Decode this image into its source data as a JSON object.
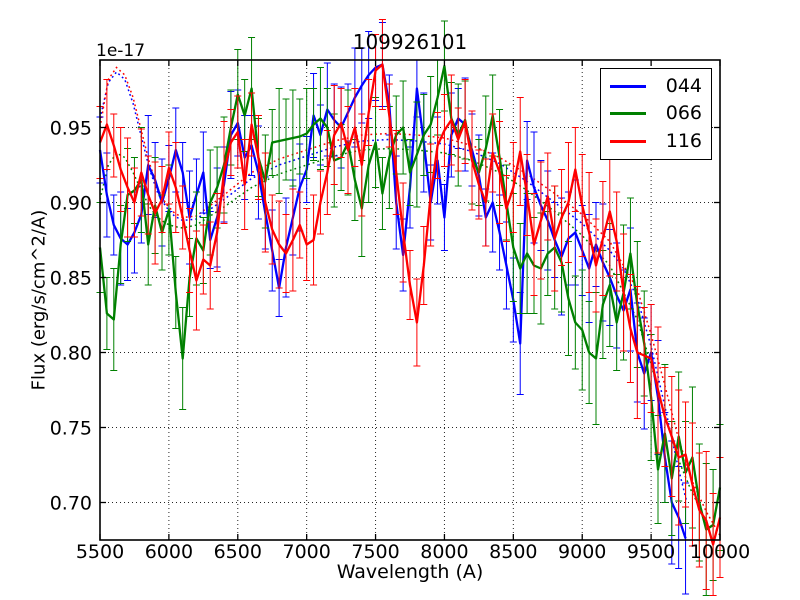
{
  "figure": {
    "title": "109926101",
    "offset_text": "1e-17",
    "xlabel": "Wavelength (A)",
    "ylabel": "Flux (erg/s/cm^2/A)"
  },
  "legend": {
    "entries": [
      {
        "label": "044",
        "color": "#0000ff"
      },
      {
        "label": "066",
        "color": "#008000"
      },
      {
        "label": "116",
        "color": "#ff0000"
      }
    ]
  },
  "chart_data": {
    "type": "line",
    "title": "109926101",
    "xlabel": "Wavelength (A)",
    "ylabel": "Flux (erg/s/cm^2/A)",
    "y_offset_factor": "1e-17",
    "grid": true,
    "legend_position": "upper right",
    "xlim": [
      5500,
      10000
    ],
    "ylim": [
      0.675,
      0.995
    ],
    "x_ticks": [
      5500,
      6000,
      6500,
      7000,
      7500,
      8000,
      8500,
      9000,
      9500,
      10000
    ],
    "x_tick_labels": [
      "5500",
      "6000",
      "6500",
      "7000",
      "7500",
      "8000",
      "8500",
      "9000",
      "9500",
      "10000"
    ],
    "y_ticks": [
      0.7,
      0.75,
      0.8,
      0.85,
      0.9,
      0.95
    ],
    "y_tick_labels": [
      "0.70",
      "0.75",
      "0.80",
      "0.85",
      "0.90",
      "0.95"
    ],
    "x_start": 5500,
    "x_step": 50,
    "series": [
      {
        "name": "044",
        "color": "#0000ff",
        "style": "solid",
        "errorbars": true,
        "values": [
          0.935,
          0.905,
          0.885,
          0.876,
          0.872,
          0.88,
          0.892,
          0.925,
          0.915,
          0.9,
          0.916,
          0.935,
          0.92,
          0.89,
          0.905,
          0.92,
          0.875,
          0.89,
          0.912,
          0.945,
          0.953,
          0.93,
          0.938,
          0.92,
          0.893,
          0.868,
          0.843,
          0.87,
          0.89,
          0.91,
          0.922,
          0.958,
          0.945,
          0.962,
          0.955,
          0.95,
          0.96,
          0.97,
          0.978,
          0.985,
          0.99,
          0.992,
          0.965,
          0.9,
          0.865,
          0.91,
          0.976,
          0.94,
          0.9,
          0.928,
          0.89,
          0.945,
          0.956,
          0.952,
          0.935,
          0.918,
          0.89,
          0.9,
          0.88,
          0.858,
          0.835,
          0.806,
          0.928,
          0.91,
          0.898,
          0.888,
          0.875,
          0.864,
          0.876,
          0.88,
          0.868,
          0.856,
          0.872,
          0.86,
          0.85,
          0.838,
          0.828,
          0.842,
          0.8,
          0.786,
          0.8,
          0.77,
          0.73,
          0.7,
          0.69,
          0.676,
          null,
          null,
          null,
          null,
          null
        ],
        "err": [
          0.022,
          0.028,
          0.02,
          0.031,
          0.024,
          0.027,
          0.019,
          0.033,
          0.025,
          0.029,
          0.022,
          0.028,
          0.02,
          0.031,
          0.024,
          0.027,
          0.019,
          0.033,
          0.025,
          0.029,
          0.022,
          0.028,
          0.02,
          0.031,
          0.024,
          0.027,
          0.019,
          0.033,
          0.025,
          0.029,
          0.022,
          0.028,
          0.02,
          0.031,
          0.024,
          0.027,
          0.019,
          0.033,
          0.025,
          0.029,
          0.022,
          0.028,
          0.02,
          0.031,
          0.024,
          0.027,
          0.019,
          0.033,
          0.025,
          0.029,
          0.022,
          0.028,
          0.02,
          0.031,
          0.024,
          0.027,
          0.019,
          0.033,
          0.025,
          0.029,
          0.028,
          0.034,
          0.026,
          0.037,
          0.03,
          0.033,
          0.025,
          0.039,
          0.031,
          0.035,
          0.03,
          0.036,
          0.028,
          0.039,
          0.032,
          0.035,
          0.027,
          0.041,
          0.033,
          0.037,
          0.032,
          0.038,
          0.03,
          0.041,
          0.034,
          0.037,
          0.029,
          0.043,
          0.035,
          0.039,
          0.032
        ]
      },
      {
        "name": "066",
        "color": "#008000",
        "style": "solid",
        "errorbars": true,
        "values": [
          0.87,
          0.826,
          0.822,
          0.872,
          0.905,
          0.908,
          0.915,
          0.872,
          0.898,
          0.88,
          0.895,
          0.84,
          0.796,
          0.85,
          0.876,
          0.868,
          0.9,
          0.91,
          0.925,
          0.95,
          0.972,
          0.958,
          0.976,
          0.93,
          0.914,
          0.94,
          0.941,
          0.942,
          0.943,
          0.944,
          0.946,
          0.952,
          0.956,
          0.95,
          0.928,
          0.93,
          0.94,
          0.915,
          0.896,
          0.925,
          0.94,
          0.906,
          0.93,
          0.945,
          0.95,
          0.92,
          0.932,
          0.945,
          0.952,
          0.97,
          0.991,
          0.956,
          0.945,
          0.955,
          0.93,
          0.92,
          0.936,
          0.958,
          0.93,
          0.9,
          0.87,
          0.856,
          0.866,
          0.858,
          0.856,
          0.866,
          0.87,
          0.86,
          0.836,
          0.82,
          0.815,
          0.8,
          0.796,
          0.832,
          0.845,
          0.82,
          0.84,
          0.866,
          0.832,
          0.806,
          0.77,
          0.722,
          0.746,
          0.716,
          0.744,
          0.72,
          0.73,
          0.7,
          0.682,
          0.685,
          0.71
        ],
        "err": [
          0.03,
          0.024,
          0.034,
          0.026,
          0.031,
          0.022,
          0.035,
          0.027,
          0.032,
          0.025,
          0.03,
          0.024,
          0.034,
          0.026,
          0.031,
          0.022,
          0.035,
          0.027,
          0.032,
          0.025,
          0.03,
          0.024,
          0.034,
          0.026,
          0.031,
          0.022,
          0.035,
          0.027,
          0.032,
          0.025,
          0.03,
          0.024,
          0.034,
          0.026,
          0.031,
          0.022,
          0.035,
          0.027,
          0.032,
          0.025,
          0.03,
          0.024,
          0.034,
          0.026,
          0.031,
          0.022,
          0.035,
          0.027,
          0.032,
          0.025,
          0.03,
          0.024,
          0.034,
          0.026,
          0.031,
          0.022,
          0.035,
          0.027,
          0.032,
          0.025,
          0.036,
          0.03,
          0.04,
          0.032,
          0.037,
          0.028,
          0.041,
          0.033,
          0.038,
          0.031,
          0.04,
          0.034,
          0.044,
          0.036,
          0.041,
          0.032,
          0.045,
          0.037,
          0.042,
          0.035,
          0.042,
          0.036,
          0.046,
          0.038,
          0.043,
          0.034,
          0.047,
          0.039,
          0.044,
          0.037,
          0.042
        ]
      },
      {
        "name": "116",
        "color": "#ff0000",
        "style": "solid",
        "errorbars": true,
        "values": [
          0.94,
          0.952,
          0.938,
          0.922,
          0.91,
          0.9,
          0.92,
          0.905,
          0.893,
          0.902,
          0.923,
          0.91,
          0.89,
          0.868,
          0.848,
          0.862,
          0.858,
          0.88,
          0.92,
          0.94,
          0.947,
          0.912,
          0.952,
          0.93,
          0.9,
          0.882,
          0.872,
          0.866,
          0.875,
          0.885,
          0.872,
          0.875,
          0.9,
          0.92,
          0.945,
          0.953,
          0.935,
          0.95,
          0.925,
          0.96,
          0.988,
          0.992,
          0.958,
          0.92,
          0.88,
          0.845,
          0.82,
          0.858,
          0.905,
          0.938,
          0.948,
          0.955,
          0.942,
          0.954,
          0.928,
          0.912,
          0.9,
          0.933,
          0.92,
          0.896,
          0.91,
          0.934,
          0.905,
          0.872,
          0.888,
          0.904,
          0.876,
          0.89,
          0.9,
          0.922,
          0.898,
          0.88,
          0.858,
          0.876,
          0.894,
          0.874,
          0.84,
          0.816,
          0.8,
          0.798,
          0.796,
          0.775,
          0.757,
          0.744,
          0.73,
          0.732,
          0.712,
          0.695,
          0.688,
          0.672,
          0.69
        ],
        "err": [
          0.024,
          0.03,
          0.021,
          0.028,
          0.033,
          0.023,
          0.029,
          0.026,
          0.034,
          0.022,
          0.024,
          0.03,
          0.021,
          0.028,
          0.033,
          0.023,
          0.029,
          0.026,
          0.034,
          0.022,
          0.024,
          0.03,
          0.021,
          0.028,
          0.033,
          0.023,
          0.029,
          0.026,
          0.034,
          0.022,
          0.024,
          0.03,
          0.021,
          0.028,
          0.033,
          0.023,
          0.029,
          0.026,
          0.034,
          0.022,
          0.024,
          0.03,
          0.021,
          0.028,
          0.033,
          0.023,
          0.029,
          0.026,
          0.034,
          0.022,
          0.024,
          0.03,
          0.021,
          0.028,
          0.033,
          0.023,
          0.029,
          0.026,
          0.034,
          0.022,
          0.03,
          0.036,
          0.027,
          0.034,
          0.039,
          0.029,
          0.035,
          0.032,
          0.04,
          0.028,
          0.034,
          0.04,
          0.031,
          0.038,
          0.043,
          0.033,
          0.039,
          0.036,
          0.044,
          0.032,
          0.036,
          0.042,
          0.033,
          0.04,
          0.045,
          0.035,
          0.041,
          0.038,
          0.046,
          0.034,
          0.04
        ]
      },
      {
        "name": "044-dotted",
        "color": "#0000ff",
        "style": "dotted",
        "errorbars": false,
        "x": [
          5500,
          5560,
          5620,
          5680,
          5740,
          5800,
          5860,
          5920,
          5980,
          6040,
          6100,
          6200,
          6400,
          6600,
          6800,
          7000,
          7200,
          7400,
          7600,
          7800,
          8000,
          8200,
          8400,
          8600,
          8800,
          9000,
          9200,
          9300,
          9400,
          9500,
          9600,
          9700,
          9760
        ],
        "y": [
          0.956,
          0.98,
          0.987,
          0.982,
          0.966,
          0.944,
          0.922,
          0.906,
          0.897,
          0.891,
          0.888,
          0.889,
          0.902,
          0.916,
          0.925,
          0.931,
          0.937,
          0.941,
          0.942,
          0.941,
          0.939,
          0.934,
          0.926,
          0.914,
          0.9,
          0.886,
          0.868,
          0.856,
          0.836,
          0.804,
          0.764,
          0.722,
          0.7
        ]
      },
      {
        "name": "066-dotted",
        "color": "#008000",
        "style": "dotted",
        "errorbars": false,
        "x": [
          5500,
          5560,
          5620,
          5680,
          5740,
          5800,
          5860,
          5920,
          5980,
          6040,
          6100,
          6200,
          6400,
          6600,
          6800,
          7000,
          7200,
          7400,
          7600,
          7800,
          8000,
          8200,
          8400,
          8600,
          8800,
          9000,
          9200,
          9400,
          9500,
          9600,
          9700,
          9800,
          9860
        ],
        "y": [
          0.902,
          0.925,
          0.933,
          0.93,
          0.92,
          0.908,
          0.897,
          0.89,
          0.886,
          0.884,
          0.883,
          0.885,
          0.897,
          0.91,
          0.919,
          0.925,
          0.931,
          0.935,
          0.936,
          0.935,
          0.933,
          0.928,
          0.92,
          0.908,
          0.894,
          0.878,
          0.858,
          0.822,
          0.792,
          0.758,
          0.728,
          0.706,
          0.696
        ]
      },
      {
        "name": "116-dotted",
        "color": "#ff0000",
        "style": "dotted",
        "errorbars": false,
        "x": [
          5500,
          5560,
          5620,
          5680,
          5740,
          5800,
          5860,
          5920,
          5980,
          6040,
          6100,
          6200,
          6400,
          6600,
          6800,
          7000,
          7200,
          7400,
          7600,
          7800,
          8000,
          8200,
          8400,
          8600,
          8800,
          9000,
          9200,
          9400,
          9500,
          9600,
          9700,
          9800,
          9900,
          10000
        ],
        "y": [
          0.95,
          0.982,
          0.99,
          0.985,
          0.97,
          0.948,
          0.926,
          0.909,
          0.899,
          0.893,
          0.89,
          0.891,
          0.905,
          0.92,
          0.929,
          0.935,
          0.941,
          0.945,
          0.946,
          0.945,
          0.943,
          0.938,
          0.93,
          0.919,
          0.906,
          0.892,
          0.874,
          0.842,
          0.812,
          0.778,
          0.742,
          0.714,
          0.694,
          0.678
        ]
      }
    ]
  }
}
